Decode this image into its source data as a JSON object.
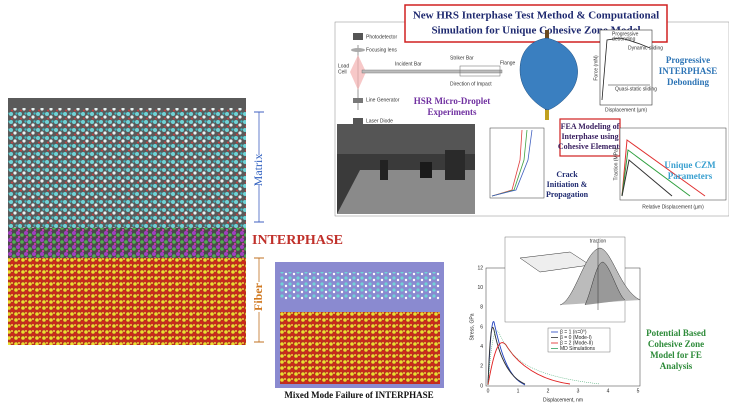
{
  "title": {
    "lines": [
      "New HRS Interphase Test Method & Computational",
      "Simulation for Unique Cohesive Zone Model"
    ]
  },
  "md_panel": {
    "matrix": "Matrix",
    "interphase": "INTERPHASE",
    "fiber": "Fiber"
  },
  "experiment": {
    "caption": [
      "HSR Micro-Droplet",
      "Experiments"
    ],
    "labels": [
      "Photodetector",
      "Focusing lens",
      "Load",
      "Cell",
      "Incident Bar",
      "Striker Bar",
      "Flange",
      "Direction of Impact",
      "Line Generator",
      "Laser Diode"
    ]
  },
  "debonding": {
    "caption": [
      "Progressive",
      "INTERPHASE",
      "Debonding"
    ],
    "labels": [
      "Progressive",
      "debonding",
      "Dynamic sliding",
      "Quasi-static sliding",
      "Force (mN)",
      "Displacement (µm)"
    ]
  },
  "fea": {
    "caption": [
      "FEA Modeling of",
      "Interphase using",
      "Cohesive Elements"
    ],
    "crack": [
      "Crack",
      "Initiation &",
      "Propagation"
    ]
  },
  "czm": {
    "caption": [
      "Unique CZM",
      "Parameters"
    ],
    "xlabel": "Relative Displacement (µm)",
    "ylabel": "Traction (MPa)"
  },
  "mixed_mode": {
    "caption": "Mixed Mode Failure of INTERPHASE"
  },
  "potential": {
    "caption": [
      "Potential Based",
      "Cohesive Zone",
      "Model for FE",
      "Analysis"
    ],
    "ylabel": "Stress, GPa",
    "xlabel": "Displacement, nm",
    "inset_label": "traction",
    "yticks": [
      "12",
      "10",
      "8",
      "6",
      "4",
      "2",
      "0"
    ],
    "xticks": [
      "0",
      "1",
      "2",
      "3",
      "4",
      "5"
    ],
    "legend": [
      "β = 1 (n=0°)",
      "β = 0 (Mode-I)",
      "β = 2 (Mode-II)",
      "MD Simulations"
    ]
  }
}
